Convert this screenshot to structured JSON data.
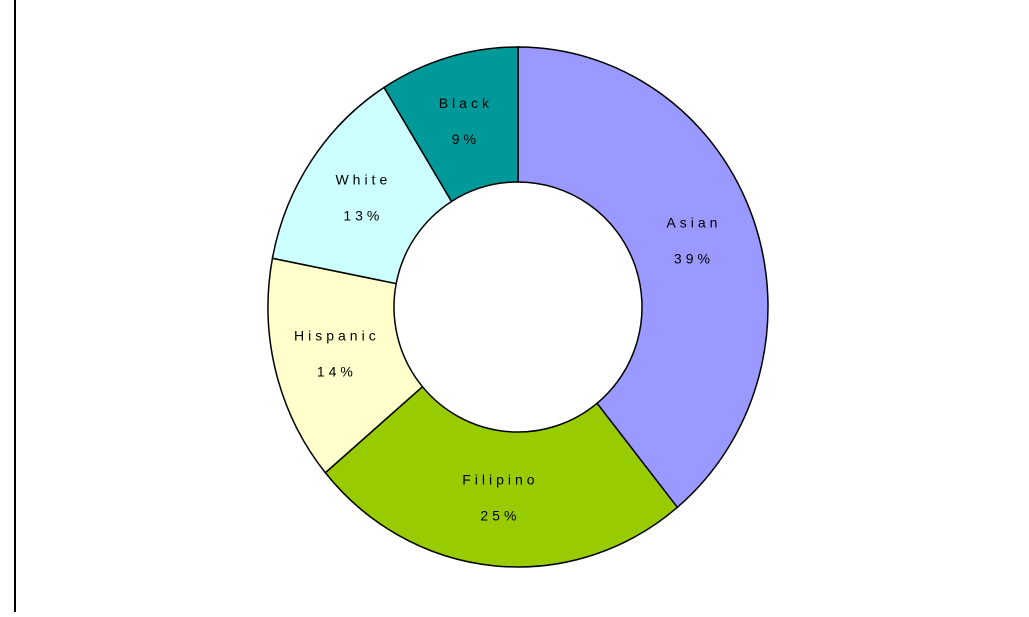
{
  "chart_data": {
    "type": "donut",
    "categories": [
      "Asian",
      "Filipino",
      "Hispanic",
      "White",
      "Black"
    ],
    "values": [
      39,
      25,
      14,
      13,
      9
    ],
    "value_labels": [
      "39%",
      "25%",
      "14%",
      "13%",
      "9%"
    ],
    "colors": [
      "#9999ff",
      "#99cc00",
      "#ffffcc",
      "#ccffff",
      "#009999"
    ]
  }
}
